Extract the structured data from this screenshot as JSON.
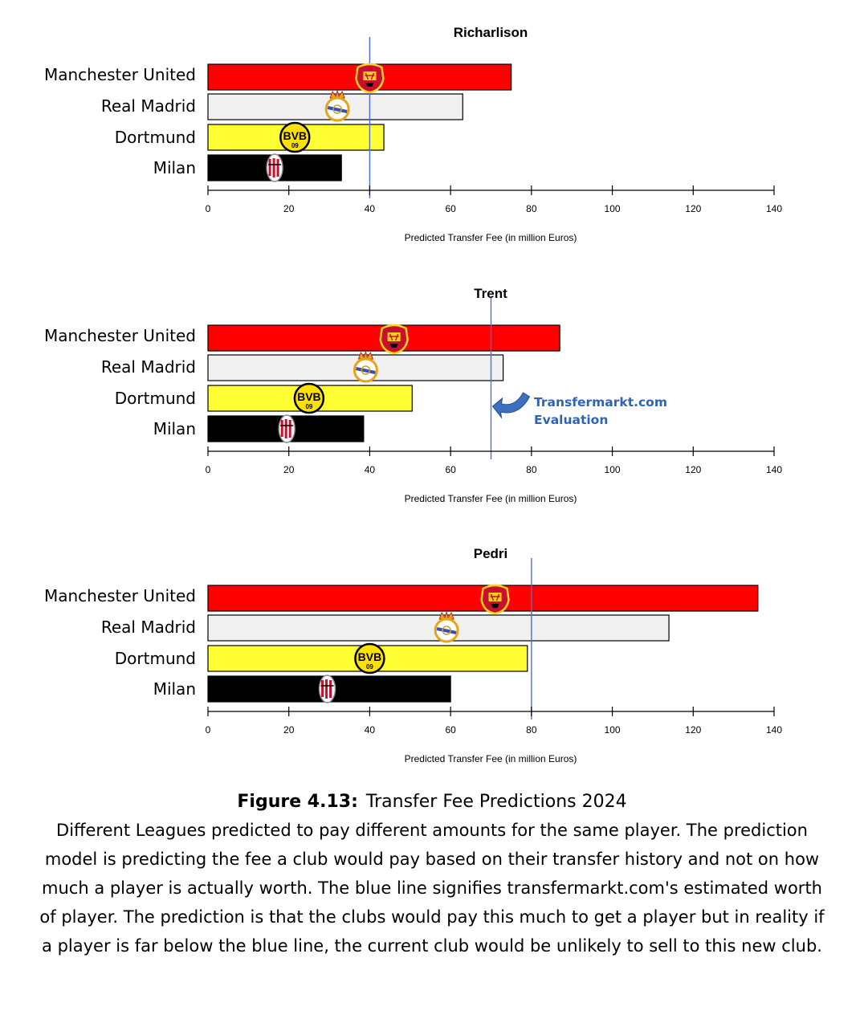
{
  "chart_data": [
    {
      "type": "bar",
      "orientation": "horizontal",
      "title": "Richarlison",
      "categories": [
        "Manchester United",
        "Real Madrid",
        "Dortmund",
        "Milan"
      ],
      "values": [
        75,
        63,
        43.5,
        33
      ],
      "logo_positions": [
        40,
        32,
        21.5,
        16.5
      ],
      "reference_line": 40,
      "xlabel": "Predicted Transfer Fee (in million Euros)",
      "xlim": [
        0,
        140
      ],
      "xticks": [
        0,
        20,
        40,
        60,
        80,
        100,
        120,
        140
      ]
    },
    {
      "type": "bar",
      "orientation": "horizontal",
      "title": "Trent",
      "categories": [
        "Manchester United",
        "Real Madrid",
        "Dortmund",
        "Milan"
      ],
      "values": [
        87,
        73,
        50.5,
        38.5
      ],
      "logo_positions": [
        46,
        39,
        25,
        19.5
      ],
      "reference_line": 70,
      "annotation": "Transfermarkt.com\nEvaluation",
      "xlabel": "Predicted Transfer Fee (in million Euros)",
      "xlim": [
        0,
        140
      ],
      "xticks": [
        0,
        20,
        40,
        60,
        80,
        100,
        120,
        140
      ]
    },
    {
      "type": "bar",
      "orientation": "horizontal",
      "title": "Pedri",
      "categories": [
        "Manchester United",
        "Real Madrid",
        "Dortmund",
        "Milan"
      ],
      "values": [
        136,
        114,
        79,
        60
      ],
      "logo_positions": [
        71,
        59,
        40,
        29.5
      ],
      "reference_line": 80,
      "xlabel": "Predicted Transfer Fee (in million Euros)",
      "xlim": [
        0,
        140
      ],
      "xticks": [
        0,
        20,
        40,
        60,
        80,
        100,
        120,
        140
      ]
    }
  ],
  "bar_colors": [
    "#ff0000",
    "#f0f0f0",
    "#ffff33",
    "#000000"
  ],
  "reference_line_color": "#4a6fd8",
  "annotation_color": "#2e63b8",
  "logo_icons": [
    "manchester-united-crest-icon",
    "real-madrid-crest-icon",
    "dortmund-bvb-crest-icon",
    "milan-crest-icon"
  ],
  "logo_text": {
    "bvb": "BVB",
    "bvb_year": "09"
  },
  "caption": {
    "label": "Figure 4.13:",
    "title": "Transfer Fee Predictions 2024",
    "body": "Different Leagues predicted to pay different amounts for the same player. The prediction model is predicting the fee a club would pay based on their transfer history and not on how much a player is actually worth. The blue line signifies transfermarkt.com's estimated worth of player. The prediction is that the clubs would pay this much to get a player but in reality if a player is far below the blue line, the current club would be unlikely to sell to this new club."
  }
}
